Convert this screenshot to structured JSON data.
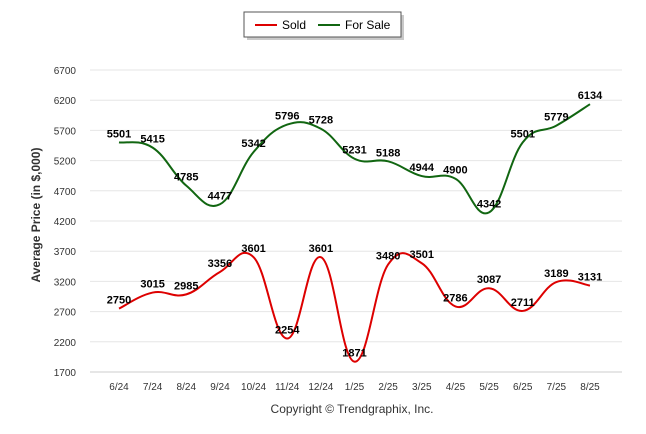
{
  "chart_data": {
    "type": "line",
    "title": "",
    "xlabel": "",
    "ylabel": "Average Price (in $,000)",
    "categories": [
      "6/24",
      "7/24",
      "8/24",
      "9/24",
      "10/24",
      "11/24",
      "12/24",
      "1/25",
      "2/25",
      "3/25",
      "4/25",
      "5/25",
      "6/25",
      "7/25",
      "8/25"
    ],
    "yticks": [
      "6700",
      "6200",
      "5700",
      "5200",
      "4700",
      "4200",
      "3700",
      "3200",
      "2700",
      "2200",
      "1700"
    ],
    "ylim": [
      1700,
      6700
    ],
    "grid": true,
    "legend_position": "top-center",
    "series": [
      {
        "name": "Sold",
        "color": "#dd0000",
        "values": [
          2750,
          3015,
          2985,
          3356,
          3601,
          2254,
          3601,
          1871,
          3480,
          3501,
          2786,
          3087,
          2711,
          3189,
          3131
        ],
        "labels": [
          "2750",
          "3015",
          "2985",
          "3356",
          "3601",
          "2254",
          "3601",
          "1871",
          "3480",
          "3501",
          "2786",
          "3087",
          "2711",
          "3189",
          "3131"
        ]
      },
      {
        "name": "For Sale",
        "color": "#116611",
        "values": [
          5501,
          5415,
          4785,
          4477,
          5342,
          5796,
          5728,
          5231,
          5188,
          4944,
          4900,
          4342,
          5501,
          5779,
          6134
        ],
        "labels": [
          "5501",
          "5415",
          "4785",
          "4477",
          "5342",
          "5796",
          "5728",
          "5231",
          "5188",
          "4944",
          "4900",
          "4342",
          "5501",
          "5779",
          "6134"
        ]
      }
    ]
  },
  "footer": {
    "copyright": "Copyright © Trendgraphix, Inc."
  }
}
